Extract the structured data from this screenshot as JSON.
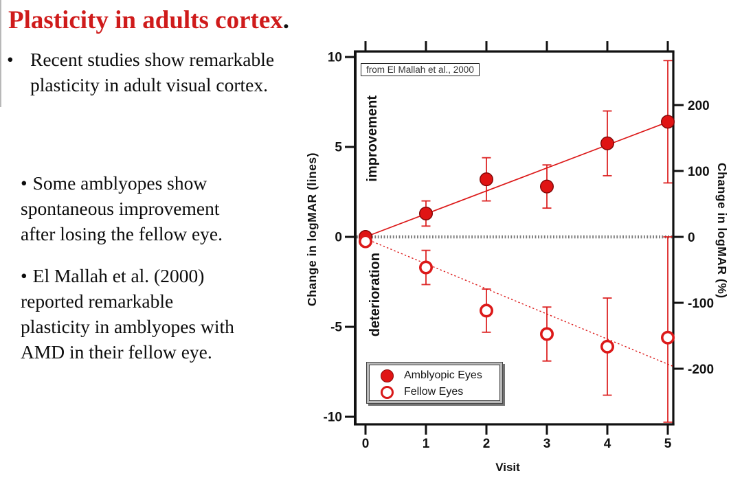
{
  "slide": {
    "title": {
      "text": "Plasticity in adults cortex",
      "period": ".",
      "color": "#cf1b1b"
    },
    "bullets": [
      {
        "marker": "•",
        "lines": "Recent studies show remarkable\nplasticity in adult visual cortex."
      },
      {
        "marker": "•",
        "lines": "Some amblyopes show\nspontaneous improvement\nafter losing the fellow eye."
      },
      {
        "marker": "•",
        "lines": "El Mallah et al. (2000)\nreported remarkable\nplasticity in amblyopes with\nAMD in their fellow eye."
      }
    ]
  },
  "chart_data": {
    "type": "scatter",
    "annotation": "from El Mallah et al., 2000",
    "xlabel": "Visit",
    "ylabel_left": "Change in logMAR (lines)",
    "ylabel_right": "Change in logMAR (%)",
    "region_labels": {
      "upper": "improvement",
      "lower": "deterioration"
    },
    "x_ticks": [
      0,
      1,
      2,
      3,
      4,
      5
    ],
    "y_left_ticks": [
      10,
      5,
      0,
      -5,
      -10
    ],
    "y_left_range": [
      -10.4,
      10.3
    ],
    "y_right_ticks": [
      200,
      100,
      0,
      -100,
      -200
    ],
    "right_axis_pct_per_line": 27.3,
    "zero_line": true,
    "grid": false,
    "legend_position": "lower-left",
    "series": [
      {
        "name": "Amblyopic Eyes",
        "marker": "filled",
        "color": "#dc1919",
        "x": [
          0,
          1,
          2,
          3,
          4,
          5
        ],
        "y": [
          0,
          1.3,
          3.2,
          2.8,
          5.2,
          6.4
        ],
        "err": [
          0,
          0.7,
          1.2,
          1.2,
          1.8,
          3.4
        ],
        "trend": {
          "style": "solid",
          "x1": 0,
          "y1": 0,
          "x2": 5.09,
          "y2": 6.5
        }
      },
      {
        "name": "Fellow Eyes",
        "marker": "open",
        "color": "#dc1919",
        "x": [
          0,
          1,
          2,
          3,
          4,
          5
        ],
        "y": [
          -0.25,
          -1.7,
          -4.1,
          -5.4,
          -6.1,
          -5.6
        ],
        "err_up": [
          0,
          0.95,
          1.2,
          1.5,
          2.7,
          5.6
        ],
        "err_down": [
          0,
          0.95,
          1.2,
          1.5,
          2.7,
          4.7
        ],
        "trend": {
          "style": "dotted",
          "x1": 0,
          "y1": -0.1,
          "x2": 5.09,
          "y2": -7.2
        }
      }
    ]
  }
}
